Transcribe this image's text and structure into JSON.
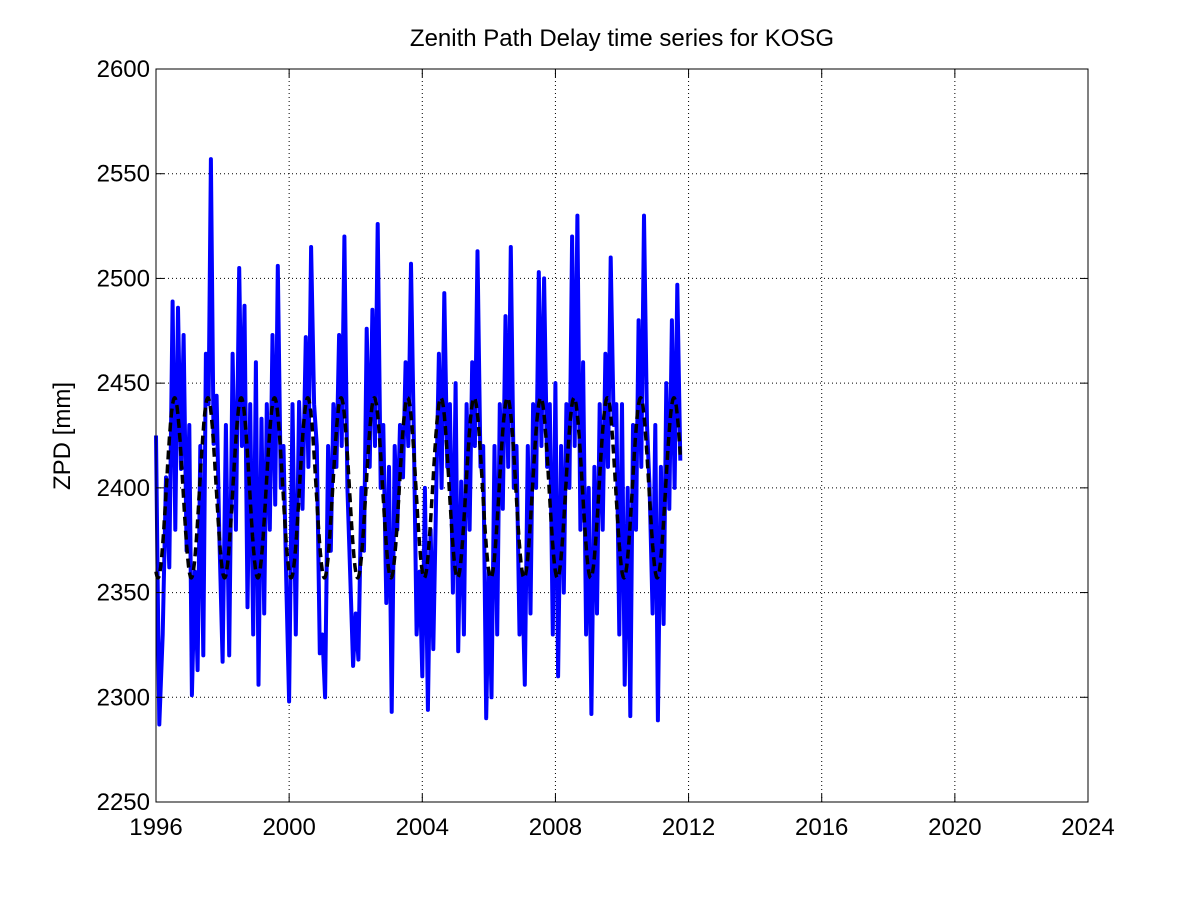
{
  "chart_data": {
    "type": "line",
    "title": "Zenith Path Delay time series for KOSG",
    "xlabel": "",
    "ylabel": "ZPD [mm]",
    "xlim": [
      1996,
      2024
    ],
    "ylim": [
      2250,
      2600
    ],
    "xticks": [
      1996,
      2000,
      2004,
      2008,
      2012,
      2016,
      2020,
      2024
    ],
    "yticks": [
      2250,
      2300,
      2350,
      2400,
      2450,
      2500,
      2550,
      2600
    ],
    "grid": true,
    "series": [
      {
        "style": "solid",
        "color": "#0000ff",
        "points": [
          [
            1996.0,
            2425
          ],
          [
            1996.1,
            2287
          ],
          [
            1996.2,
            2330
          ],
          [
            1996.3,
            2405
          ],
          [
            1996.4,
            2362
          ],
          [
            1996.5,
            2489
          ],
          [
            1996.58,
            2380
          ],
          [
            1996.66,
            2486
          ],
          [
            1996.75,
            2409
          ],
          [
            1996.83,
            2473
          ],
          [
            1996.92,
            2370
          ],
          [
            1997.0,
            2430
          ],
          [
            1997.08,
            2301
          ],
          [
            1997.17,
            2360
          ],
          [
            1997.25,
            2313
          ],
          [
            1997.33,
            2420
          ],
          [
            1997.42,
            2320
          ],
          [
            1997.5,
            2464
          ],
          [
            1997.58,
            2440
          ],
          [
            1997.65,
            2557
          ],
          [
            1997.73,
            2421
          ],
          [
            1997.82,
            2444
          ],
          [
            1997.9,
            2380
          ],
          [
            1998.0,
            2317
          ],
          [
            1998.1,
            2430
          ],
          [
            1998.2,
            2320
          ],
          [
            1998.3,
            2464
          ],
          [
            1998.4,
            2380
          ],
          [
            1998.5,
            2505
          ],
          [
            1998.58,
            2420
          ],
          [
            1998.66,
            2487
          ],
          [
            1998.75,
            2343
          ],
          [
            1998.83,
            2440
          ],
          [
            1998.92,
            2330
          ],
          [
            1999.0,
            2460
          ],
          [
            1999.08,
            2306
          ],
          [
            1999.17,
            2433
          ],
          [
            1999.25,
            2340
          ],
          [
            1999.33,
            2440
          ],
          [
            1999.42,
            2380
          ],
          [
            1999.5,
            2473
          ],
          [
            1999.58,
            2392
          ],
          [
            1999.66,
            2506
          ],
          [
            1999.75,
            2400
          ],
          [
            1999.83,
            2420
          ],
          [
            1999.92,
            2350
          ],
          [
            2000.0,
            2298
          ],
          [
            2000.1,
            2440
          ],
          [
            2000.2,
            2330
          ],
          [
            2000.3,
            2441
          ],
          [
            2000.4,
            2390
          ],
          [
            2000.5,
            2472
          ],
          [
            2000.58,
            2410
          ],
          [
            2000.66,
            2515
          ],
          [
            2000.75,
            2440
          ],
          [
            2000.83,
            2420
          ],
          [
            2000.92,
            2321
          ],
          [
            2001.0,
            2330
          ],
          [
            2001.08,
            2300
          ],
          [
            2001.17,
            2420
          ],
          [
            2001.25,
            2370
          ],
          [
            2001.33,
            2440
          ],
          [
            2001.42,
            2410
          ],
          [
            2001.5,
            2473
          ],
          [
            2001.58,
            2420
          ],
          [
            2001.66,
            2520
          ],
          [
            2001.75,
            2400
          ],
          [
            2001.83,
            2360
          ],
          [
            2001.92,
            2315
          ],
          [
            2002.0,
            2340
          ],
          [
            2002.08,
            2318
          ],
          [
            2002.17,
            2400
          ],
          [
            2002.25,
            2370
          ],
          [
            2002.33,
            2476
          ],
          [
            2002.42,
            2410
          ],
          [
            2002.5,
            2485
          ],
          [
            2002.58,
            2420
          ],
          [
            2002.66,
            2526
          ],
          [
            2002.75,
            2400
          ],
          [
            2002.83,
            2430
          ],
          [
            2002.92,
            2345
          ],
          [
            2003.0,
            2410
          ],
          [
            2003.08,
            2293
          ],
          [
            2003.17,
            2420
          ],
          [
            2003.25,
            2380
          ],
          [
            2003.33,
            2430
          ],
          [
            2003.42,
            2405
          ],
          [
            2003.5,
            2460
          ],
          [
            2003.58,
            2420
          ],
          [
            2003.66,
            2507
          ],
          [
            2003.75,
            2420
          ],
          [
            2003.83,
            2330
          ],
          [
            2003.92,
            2360
          ],
          [
            2004.0,
            2310
          ],
          [
            2004.08,
            2400
          ],
          [
            2004.17,
            2294
          ],
          [
            2004.25,
            2380
          ],
          [
            2004.33,
            2323
          ],
          [
            2004.42,
            2400
          ],
          [
            2004.5,
            2464
          ],
          [
            2004.58,
            2400
          ],
          [
            2004.66,
            2493
          ],
          [
            2004.75,
            2410
          ],
          [
            2004.83,
            2440
          ],
          [
            2004.92,
            2350
          ],
          [
            2005.0,
            2450
          ],
          [
            2005.08,
            2322
          ],
          [
            2005.17,
            2403
          ],
          [
            2005.25,
            2330
          ],
          [
            2005.33,
            2440
          ],
          [
            2005.42,
            2380
          ],
          [
            2005.5,
            2460
          ],
          [
            2005.58,
            2420
          ],
          [
            2005.66,
            2513
          ],
          [
            2005.75,
            2410
          ],
          [
            2005.83,
            2420
          ],
          [
            2005.92,
            2290
          ],
          [
            2006.0,
            2360
          ],
          [
            2006.08,
            2300
          ],
          [
            2006.17,
            2420
          ],
          [
            2006.25,
            2330
          ],
          [
            2006.33,
            2440
          ],
          [
            2006.42,
            2390
          ],
          [
            2006.5,
            2482
          ],
          [
            2006.58,
            2410
          ],
          [
            2006.66,
            2515
          ],
          [
            2006.75,
            2400
          ],
          [
            2006.83,
            2420
          ],
          [
            2006.92,
            2330
          ],
          [
            2007.0,
            2360
          ],
          [
            2007.08,
            2306
          ],
          [
            2007.17,
            2420
          ],
          [
            2007.25,
            2340
          ],
          [
            2007.33,
            2440
          ],
          [
            2007.42,
            2400
          ],
          [
            2007.5,
            2503
          ],
          [
            2007.58,
            2420
          ],
          [
            2007.66,
            2500
          ],
          [
            2007.75,
            2410
          ],
          [
            2007.83,
            2440
          ],
          [
            2007.92,
            2330
          ],
          [
            2008.0,
            2450
          ],
          [
            2008.08,
            2310
          ],
          [
            2008.17,
            2420
          ],
          [
            2008.25,
            2350
          ],
          [
            2008.33,
            2440
          ],
          [
            2008.42,
            2400
          ],
          [
            2008.5,
            2520
          ],
          [
            2008.58,
            2420
          ],
          [
            2008.66,
            2530
          ],
          [
            2008.75,
            2380
          ],
          [
            2008.83,
            2460
          ],
          [
            2008.92,
            2330
          ],
          [
            2009.0,
            2400
          ],
          [
            2009.08,
            2292
          ],
          [
            2009.17,
            2410
          ],
          [
            2009.25,
            2340
          ],
          [
            2009.33,
            2440
          ],
          [
            2009.42,
            2380
          ],
          [
            2009.5,
            2464
          ],
          [
            2009.58,
            2410
          ],
          [
            2009.66,
            2510
          ],
          [
            2009.75,
            2430
          ],
          [
            2009.83,
            2440
          ],
          [
            2009.92,
            2330
          ],
          [
            2010.0,
            2440
          ],
          [
            2010.08,
            2306
          ],
          [
            2010.17,
            2400
          ],
          [
            2010.25,
            2291
          ],
          [
            2010.33,
            2430
          ],
          [
            2010.42,
            2380
          ],
          [
            2010.5,
            2480
          ],
          [
            2010.58,
            2410
          ],
          [
            2010.66,
            2530
          ],
          [
            2010.75,
            2430
          ],
          [
            2010.83,
            2400
          ],
          [
            2010.92,
            2340
          ],
          [
            2011.0,
            2430
          ],
          [
            2011.08,
            2289
          ],
          [
            2011.17,
            2410
          ],
          [
            2011.25,
            2335
          ],
          [
            2011.33,
            2450
          ],
          [
            2011.42,
            2390
          ],
          [
            2011.5,
            2480
          ],
          [
            2011.58,
            2400
          ],
          [
            2011.66,
            2497
          ],
          [
            2011.75,
            2413
          ]
        ]
      },
      {
        "style": "dashed",
        "color": "#000000",
        "model": "annual",
        "mean": 2400,
        "amplitude": 43,
        "period": 1,
        "peak_phase": 0.56,
        "range": [
          1996.0,
          2011.75
        ]
      }
    ]
  }
}
